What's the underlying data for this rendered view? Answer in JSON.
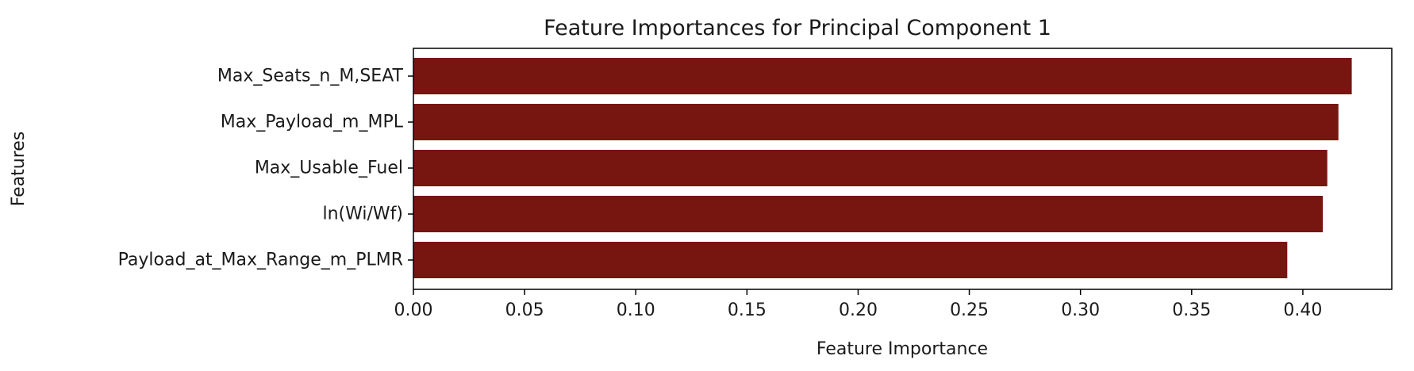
{
  "chart_data": {
    "type": "bar",
    "orientation": "horizontal",
    "title": "Feature Importances for Principal Component 1",
    "xlabel": "Feature Importance",
    "ylabel": "Features",
    "categories": [
      "Max_Seats_n_M,SEAT",
      "Max_Payload_m_MPL",
      "Max_Usable_Fuel",
      "ln(Wi/Wf)",
      "Payload_at_Max_Range_m_PLMR"
    ],
    "values": [
      0.422,
      0.416,
      0.411,
      0.409,
      0.393
    ],
    "xlim": [
      0,
      0.44
    ],
    "xticks": [
      "0.00",
      "0.05",
      "0.10",
      "0.15",
      "0.20",
      "0.25",
      "0.30",
      "0.35",
      "0.40"
    ],
    "bar_color": "#771511",
    "grid": false,
    "legend": "none"
  }
}
